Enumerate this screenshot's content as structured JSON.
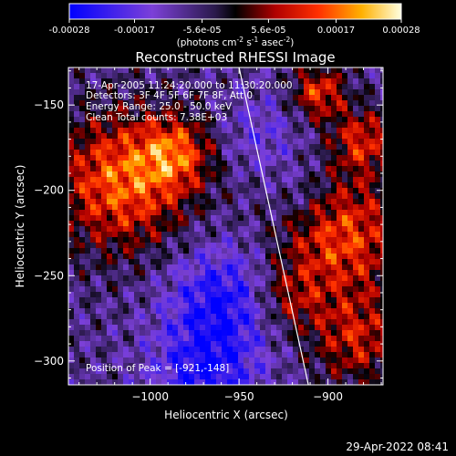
{
  "colorbar": {
    "ticks": [
      "-0.00028",
      "-0.00017",
      "-5.6e-05",
      "5.6e-05",
      "0.00017",
      "0.00028"
    ],
    "tick_values": [
      -0.00028,
      -0.00017,
      -5.6e-05,
      5.6e-05,
      0.00017,
      0.00028
    ],
    "range": [
      -0.00028,
      0.00028
    ],
    "unit_prefix": "(photons cm",
    "unit_exp1": "-2",
    "unit_mid": " s",
    "unit_exp2": "-1",
    "unit_mid2": " asec",
    "unit_exp3": "-2",
    "unit_suffix": ")"
  },
  "chart_data": {
    "type": "heatmap",
    "title": "Reconstructed RHESSI Image",
    "xlabel": "Heliocentric X (arcsec)",
    "ylabel": "Heliocentric Y (arcsec)",
    "xlim": [
      -1046,
      -869
    ],
    "ylim": [
      -314,
      -128
    ],
    "x_ticks": [
      {
        "label": "−1000",
        "value": -1000
      },
      {
        "label": "−950",
        "value": -950
      },
      {
        "label": "−900",
        "value": -900
      }
    ],
    "y_ticks": [
      {
        "label": "−150",
        "value": -150
      },
      {
        "label": "−200",
        "value": -200
      },
      {
        "label": "−250",
        "value": -250
      },
      {
        "label": "−300",
        "value": -300
      }
    ],
    "peak": [
      -921,
      -148
    ],
    "limb": [
      [
        -950,
        -128
      ],
      [
        -911,
        -314
      ]
    ]
  },
  "annotations": {
    "time": "17-Apr-2005 11:24:20.000 to 11:30:20.000",
    "detectors": "Detectors: 3F 4F 5F 6F 7F 8F, Att 0",
    "energy": "Energy Range: 25.0 - 50.0 keV",
    "clean": "Clean     Total counts: 7.38E+03",
    "peak": "Position of Peak = [-921,-148]"
  },
  "footer": {
    "date": "29-Apr-2022 08:41"
  }
}
